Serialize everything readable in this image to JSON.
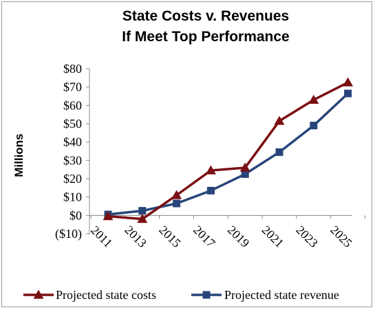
{
  "chart_data": {
    "type": "line",
    "title": [
      "State Costs v. Revenues",
      "If Meet Top Performance"
    ],
    "xlabel": "",
    "ylabel": "Millions",
    "categories": [
      "2011",
      "2013",
      "2015",
      "2017",
      "2019",
      "2021",
      "2023",
      "2025"
    ],
    "y_ticks": [
      "($10)",
      "$0",
      "$10",
      "$20",
      "$30",
      "$40",
      "$50",
      "$60",
      "$70",
      "$80"
    ],
    "ylim": [
      -10,
      80
    ],
    "grid": false,
    "legend_position": "bottom",
    "series": [
      {
        "name": "Projected state costs",
        "marker": "triangle",
        "color": "#7b0f12",
        "values": [
          -0.5,
          -2,
          11,
          24.5,
          26,
          51.5,
          63,
          72.5
        ]
      },
      {
        "name": "Projected state revenue",
        "marker": "square",
        "color": "#27457a",
        "values": [
          0.5,
          2.5,
          6.5,
          13.5,
          22.5,
          34.5,
          49,
          66.5
        ]
      }
    ]
  }
}
